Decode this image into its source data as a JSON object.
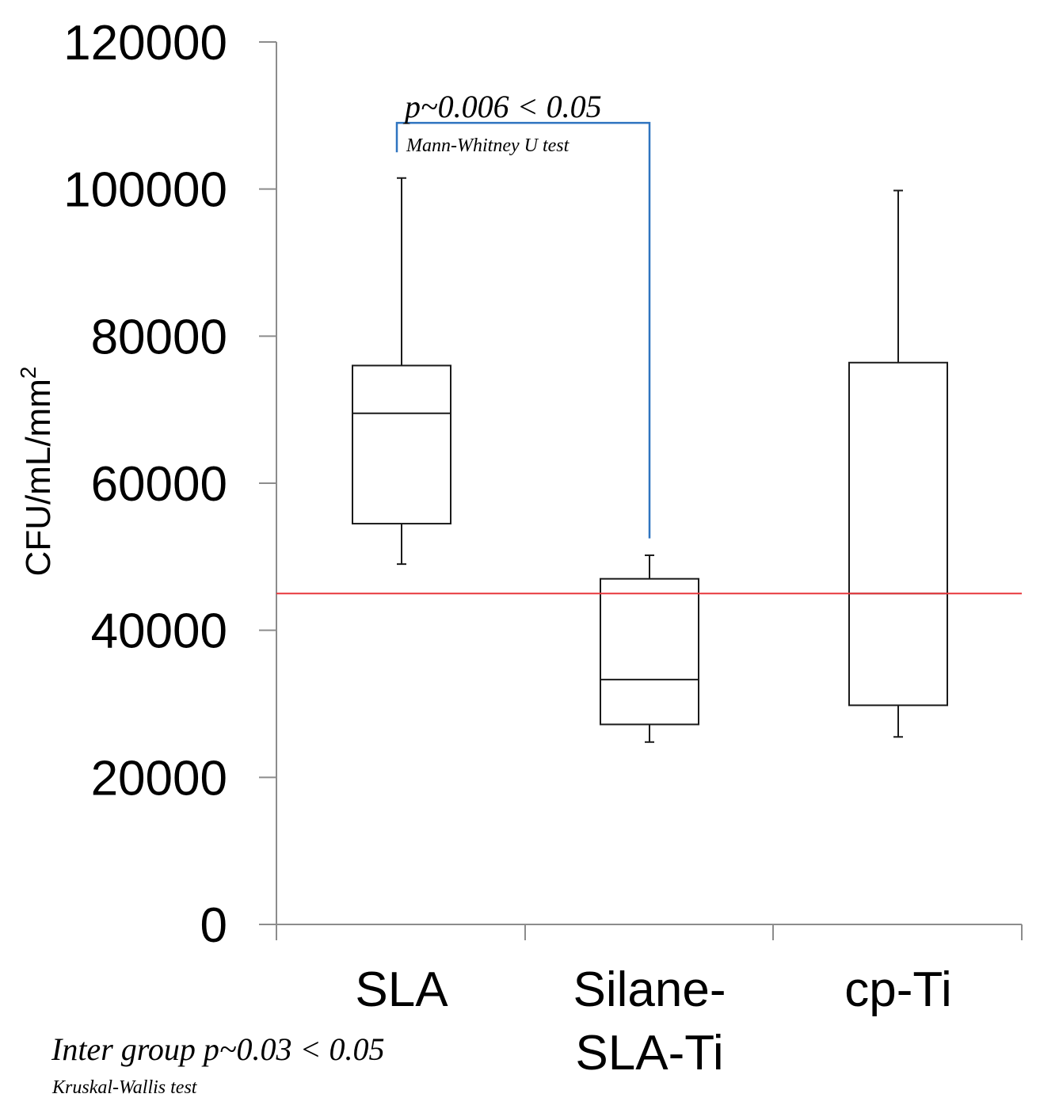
{
  "chart_data": {
    "type": "box",
    "ylabel": "CFU/mL/mm",
    "ylabel_sup": "2",
    "ylim": [
      0,
      120000
    ],
    "yticks": [
      0,
      20000,
      40000,
      60000,
      80000,
      100000,
      120000
    ],
    "ytick_labels": [
      "0",
      "20000",
      "40000",
      "60000",
      "80000",
      "100000",
      "120000"
    ],
    "categories": [
      {
        "lines": [
          "SLA"
        ]
      },
      {
        "lines": [
          "Silane-",
          "SLA-Ti"
        ]
      },
      {
        "lines": [
          "cp-Ti"
        ]
      }
    ],
    "boxes": [
      {
        "name": "SLA",
        "min": 49000,
        "q1": 54500,
        "median": 69500,
        "q3": 76000,
        "max": 101500
      },
      {
        "name": "Silane-SLA-Ti",
        "min": 24800,
        "q1": 27200,
        "median": 33300,
        "q3": 47000,
        "max": 50200
      },
      {
        "name": "cp-Ti",
        "min": 25500,
        "q1": 29800,
        "median": 45000,
        "q3": 76400,
        "max": 99800
      }
    ],
    "reference_line": {
      "value": 45000,
      "color": "#e8383d"
    },
    "annotation": {
      "p_text": "p~0.006 < 0.05",
      "test_text": "Mann-Whitney U test",
      "from_category": 0,
      "to_category": 1,
      "bracket_top": 109000,
      "left_end": 105000,
      "right_end": 52500,
      "color": "#2f74c0"
    },
    "footer": {
      "p_text": "Inter group p~0.03 < 0.05",
      "test_text": "Kruskal-Wallis test"
    }
  }
}
